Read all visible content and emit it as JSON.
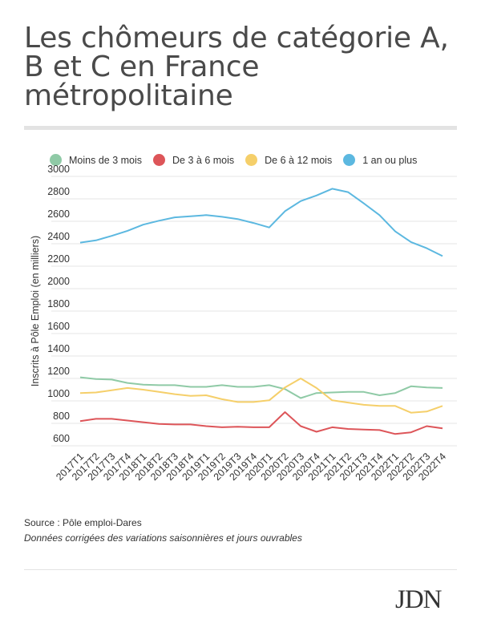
{
  "title": "Les chômeurs de catégorie A, B et C en France métropolitaine",
  "source": "Source : Pôle emploi-Dares",
  "note": "Données corrigées des variations saisonnières et jours ouvrables",
  "logo": "JDN",
  "colors": {
    "green": "#8fcaa6",
    "red": "#dd5559",
    "yellow": "#f5cf6a",
    "blue": "#5cb8e0",
    "grid": "#e6e6e6",
    "text": "#333333"
  },
  "chart_data": {
    "type": "line",
    "ylabel": "Inscrits à Pôle Emploi (en milliers)",
    "xlabel": "",
    "ylim": [
      600,
      3000
    ],
    "yticks": [
      600,
      800,
      1000,
      1200,
      1400,
      1600,
      1800,
      2000,
      2200,
      2400,
      2600,
      2800,
      3000
    ],
    "grid": true,
    "legend_position": "top",
    "categories": [
      "2017T1",
      "2017T2",
      "2017T3",
      "2017T4",
      "2018T1",
      "2018T2",
      "2018T3",
      "2018T4",
      "2019T1",
      "2019T2",
      "2019T3",
      "2019T4",
      "2020T1",
      "2020T2",
      "2020T3",
      "2020T4",
      "2021T1",
      "2021T2",
      "2021T3",
      "2021T4",
      "2022T1",
      "2022T2",
      "2022T3",
      "2022T4"
    ],
    "series": [
      {
        "name": "Moins de 3 mois",
        "color": "#8fcaa6",
        "values": [
          1210,
          1195,
          1190,
          1160,
          1145,
          1140,
          1140,
          1125,
          1125,
          1140,
          1125,
          1125,
          1140,
          1105,
          1025,
          1070,
          1075,
          1080,
          1080,
          1050,
          1070,
          1130,
          1120,
          1115
        ]
      },
      {
        "name": "De 3 à 6 mois",
        "color": "#dd5559",
        "values": [
          820,
          840,
          840,
          825,
          810,
          795,
          790,
          790,
          775,
          765,
          770,
          765,
          765,
          900,
          775,
          725,
          765,
          750,
          745,
          740,
          705,
          720,
          775,
          755
        ]
      },
      {
        "name": "De 6 à 12 mois",
        "color": "#f5cf6a",
        "values": [
          1070,
          1075,
          1095,
          1115,
          1100,
          1080,
          1060,
          1045,
          1050,
          1015,
          990,
          990,
          1005,
          1120,
          1200,
          1115,
          1005,
          985,
          965,
          955,
          955,
          895,
          905,
          955
        ]
      },
      {
        "name": "1 an ou plus",
        "color": "#5cb8e0",
        "values": [
          2410,
          2430,
          2470,
          2515,
          2570,
          2605,
          2635,
          2645,
          2655,
          2640,
          2620,
          2585,
          2545,
          2690,
          2780,
          2830,
          2890,
          2860,
          2760,
          2655,
          2510,
          2415,
          2360,
          2290
        ]
      }
    ]
  }
}
